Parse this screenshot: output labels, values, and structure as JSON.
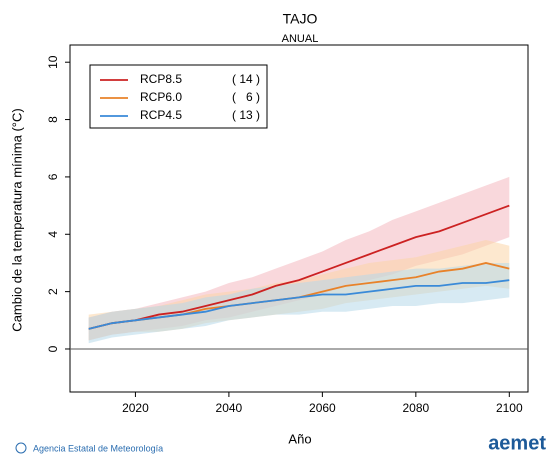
{
  "chart_data": {
    "type": "line",
    "title": "TAJO",
    "subtitle": "ANUAL",
    "xlabel": "Año",
    "ylabel": "Cambio de la temperatura mínima (°C)",
    "footer": "Agencia Estatal de Meteorología",
    "logo": "aemet",
    "x": [
      2010,
      2015,
      2020,
      2025,
      2030,
      2035,
      2040,
      2045,
      2050,
      2055,
      2060,
      2065,
      2070,
      2075,
      2080,
      2085,
      2090,
      2095,
      2100
    ],
    "xlim": [
      2006,
      2104
    ],
    "xticks": [
      2020,
      2040,
      2060,
      2080,
      2100
    ],
    "ylim": [
      -1.5,
      10.6
    ],
    "yticks": [
      0,
      2,
      4,
      6,
      8,
      10
    ],
    "series": [
      {
        "name": "RCP8.5",
        "models": "( 14 )",
        "color": "#cc2222",
        "band_color": "#f4b8c0",
        "values": [
          0.7,
          0.9,
          1.0,
          1.2,
          1.3,
          1.5,
          1.7,
          1.9,
          2.2,
          2.4,
          2.7,
          3.0,
          3.3,
          3.6,
          3.9,
          4.1,
          4.4,
          4.7,
          5.0
        ],
        "lower": [
          0.3,
          0.5,
          0.6,
          0.7,
          0.8,
          1.0,
          1.1,
          1.3,
          1.5,
          1.7,
          1.9,
          2.2,
          2.4,
          2.6,
          2.9,
          3.1,
          3.3,
          3.6,
          3.9
        ],
        "upper": [
          1.1,
          1.3,
          1.4,
          1.6,
          1.8,
          2.0,
          2.3,
          2.5,
          2.8,
          3.1,
          3.4,
          3.8,
          4.1,
          4.5,
          4.8,
          5.1,
          5.4,
          5.7,
          6.0
        ]
      },
      {
        "name": "RCP6.0",
        "models": "(   6 )",
        "color": "#e8822a",
        "band_color": "#fbd5a8",
        "values": [
          0.7,
          0.9,
          1.0,
          1.1,
          1.2,
          1.4,
          1.5,
          1.6,
          1.7,
          1.8,
          2.0,
          2.2,
          2.3,
          2.4,
          2.5,
          2.7,
          2.8,
          3.0,
          2.8
        ],
        "lower": [
          0.3,
          0.5,
          0.6,
          0.6,
          0.7,
          0.9,
          1.0,
          1.1,
          1.2,
          1.3,
          1.4,
          1.6,
          1.7,
          1.8,
          1.9,
          2.0,
          2.1,
          2.2,
          2.1
        ],
        "upper": [
          1.2,
          1.3,
          1.4,
          1.5,
          1.7,
          1.9,
          2.0,
          2.1,
          2.3,
          2.4,
          2.6,
          2.8,
          3.0,
          3.1,
          3.2,
          3.4,
          3.6,
          3.8,
          3.6
        ]
      },
      {
        "name": "RCP4.5",
        "models": "( 13 )",
        "color": "#3a8ad8",
        "band_color": "#b7d8ea",
        "values": [
          0.7,
          0.9,
          1.0,
          1.1,
          1.2,
          1.3,
          1.5,
          1.6,
          1.7,
          1.8,
          1.9,
          1.9,
          2.0,
          2.1,
          2.2,
          2.2,
          2.3,
          2.3,
          2.4
        ],
        "lower": [
          0.2,
          0.4,
          0.5,
          0.6,
          0.7,
          0.8,
          1.0,
          1.1,
          1.2,
          1.2,
          1.3,
          1.3,
          1.4,
          1.5,
          1.5,
          1.6,
          1.6,
          1.7,
          1.8
        ],
        "upper": [
          1.1,
          1.3,
          1.4,
          1.5,
          1.6,
          1.8,
          1.9,
          2.1,
          2.2,
          2.3,
          2.4,
          2.5,
          2.6,
          2.7,
          2.8,
          2.8,
          2.9,
          3.0,
          3.0
        ]
      }
    ]
  }
}
